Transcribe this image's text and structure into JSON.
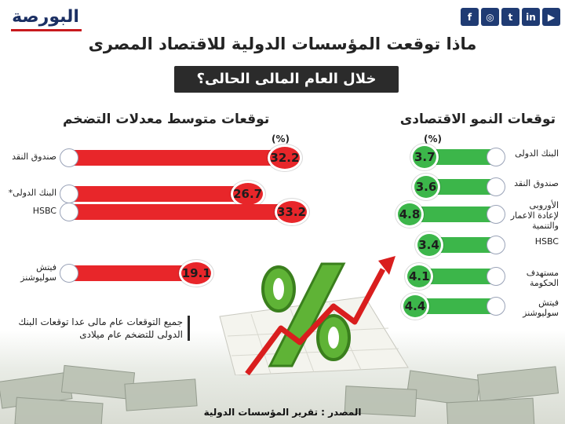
{
  "brand": {
    "logo_text": "البورصة"
  },
  "social": [
    {
      "name": "facebook",
      "glyph": "f"
    },
    {
      "name": "instagram",
      "glyph": "◎"
    },
    {
      "name": "twitter",
      "glyph": "t"
    },
    {
      "name": "linkedin",
      "glyph": "in"
    },
    {
      "name": "youtube",
      "glyph": "▶"
    }
  ],
  "header": {
    "title": "ماذا توقعت المؤسسات الدولية للاقتصاد المصرى",
    "subtitle": "خلال العام المالى الحالى؟"
  },
  "footnote": "جميع التوقعات عام مالى عدا توقعات البنك الدولى للتضخم عام ميلادى",
  "source": "المصدر : تقرير المؤسسات الدولية",
  "colors": {
    "growth": "#3cb64a",
    "inflation": "#e8262a",
    "dark": "#2b2b2b",
    "navy": "#1f3b73"
  },
  "chart_data": [
    {
      "type": "bar",
      "title": "توقعات النمو الاقتصادى",
      "unit": "%",
      "categories": [
        "البنك الدولى",
        "صندوق النقد",
        "الأوروبى لإعادة الاعمار والتنمية",
        "HSBC",
        "مستهدف الحكومة",
        "فيتش سوليوشنز"
      ],
      "values": [
        3.7,
        3.6,
        4.8,
        3.4,
        4.1,
        4.4
      ],
      "org_icons": [
        "world-bank",
        "imf",
        "ebrd",
        "hsbc",
        "egypt-eagle",
        "fitch"
      ]
    },
    {
      "type": "bar",
      "title": "توقعات متوسط معدلات التضخم",
      "unit": "%",
      "categories": [
        "صندوق النقد",
        "البنك الدولى*",
        "HSBC",
        "فيتش سوليوشنز"
      ],
      "values": [
        32.2,
        26.7,
        33.2,
        19.1
      ],
      "org_icons": [
        "imf",
        "world-bank",
        "hsbc",
        "fitch"
      ]
    }
  ]
}
